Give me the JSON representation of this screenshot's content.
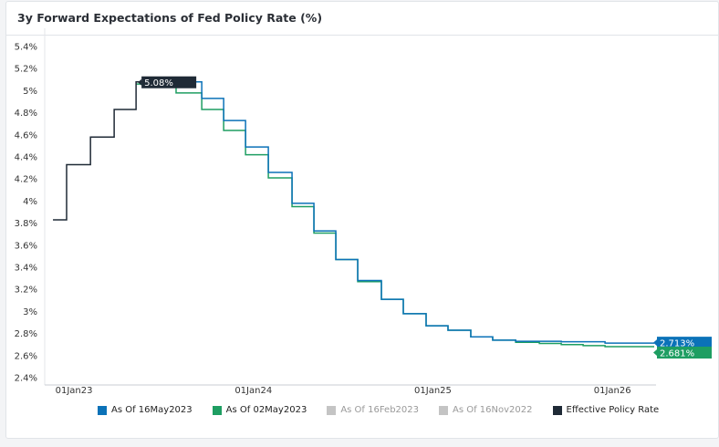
{
  "chart_data": {
    "type": "line",
    "title": "3y Forward Expectations of Fed Policy Rate (%)",
    "xlabel": "",
    "ylabel": "",
    "xlim": [
      2022.837,
      2026.233
    ],
    "ylim": [
      2.4,
      5.4
    ],
    "y_ticks": [
      2.4,
      2.6,
      2.8,
      3.0,
      3.2,
      3.4,
      3.6,
      3.8,
      4.0,
      4.2,
      4.4,
      4.6,
      4.8,
      5.0,
      5.2,
      5.4
    ],
    "y_tick_labels": [
      "2.4%",
      "2.6%",
      "2.8%",
      "3%",
      "3.2%",
      "3.4%",
      "3.6%",
      "3.8%",
      "4%",
      "4.2%",
      "4.4%",
      "4.6%",
      "4.8%",
      "5%",
      "5.2%",
      "5.4%"
    ],
    "x_ticks": [
      2023.0,
      2024.0,
      2025.0,
      2026.0
    ],
    "x_tick_labels": [
      "01Jan23",
      "01Jan24",
      "01Jan25",
      "01Jan26"
    ],
    "grid": false,
    "legend_position": "bottom",
    "series": [
      {
        "name": "As Of 16May2023",
        "color": "#0b72b8",
        "visible": true,
        "end_label": "2.713%",
        "points": [
          [
            2023.346,
            5.08
          ],
          [
            2023.712,
            4.93
          ],
          [
            2023.834,
            4.73
          ],
          [
            2023.956,
            4.49
          ],
          [
            2024.083,
            4.26
          ],
          [
            2024.215,
            3.98
          ],
          [
            2024.337,
            3.73
          ],
          [
            2024.459,
            3.47
          ],
          [
            2024.581,
            3.28
          ],
          [
            2024.713,
            3.11
          ],
          [
            2024.835,
            2.98
          ],
          [
            2024.962,
            2.87
          ],
          [
            2025.084,
            2.83
          ],
          [
            2025.211,
            2.77
          ],
          [
            2025.333,
            2.74
          ],
          [
            2025.461,
            2.73
          ],
          [
            2025.715,
            2.725
          ],
          [
            2025.959,
            2.713
          ],
          [
            2026.233,
            2.713
          ]
        ]
      },
      {
        "name": "As Of 02May2023",
        "color": "#1e9e62",
        "visible": true,
        "end_label": "2.681%",
        "points": [
          [
            2023.346,
            5.06
          ],
          [
            2023.569,
            4.98
          ],
          [
            2023.712,
            4.83
          ],
          [
            2023.834,
            4.64
          ],
          [
            2023.956,
            4.42
          ],
          [
            2024.083,
            4.21
          ],
          [
            2024.215,
            3.95
          ],
          [
            2024.337,
            3.71
          ],
          [
            2024.459,
            3.47
          ],
          [
            2024.581,
            3.27
          ],
          [
            2024.713,
            3.11
          ],
          [
            2024.835,
            2.98
          ],
          [
            2024.962,
            2.87
          ],
          [
            2025.084,
            2.83
          ],
          [
            2025.211,
            2.77
          ],
          [
            2025.333,
            2.74
          ],
          [
            2025.461,
            2.72
          ],
          [
            2025.593,
            2.71
          ],
          [
            2025.715,
            2.7
          ],
          [
            2025.837,
            2.69
          ],
          [
            2025.959,
            2.681
          ],
          [
            2026.233,
            2.681
          ]
        ]
      },
      {
        "name": "As Of 16Feb2023",
        "color": "#c4c4c4",
        "visible": false,
        "points": []
      },
      {
        "name": "As Of 16Nov2022",
        "color": "#c4c4c4",
        "visible": false,
        "points": []
      },
      {
        "name": "Effective Policy Rate",
        "color": "#1f2a36",
        "visible": true,
        "end_label": "5.08%",
        "points": [
          [
            2022.883,
            3.83
          ],
          [
            2022.959,
            4.33
          ],
          [
            2023.092,
            4.58
          ],
          [
            2023.224,
            4.83
          ],
          [
            2023.346,
            5.08
          ],
          [
            2023.407,
            5.08
          ]
        ]
      }
    ]
  }
}
